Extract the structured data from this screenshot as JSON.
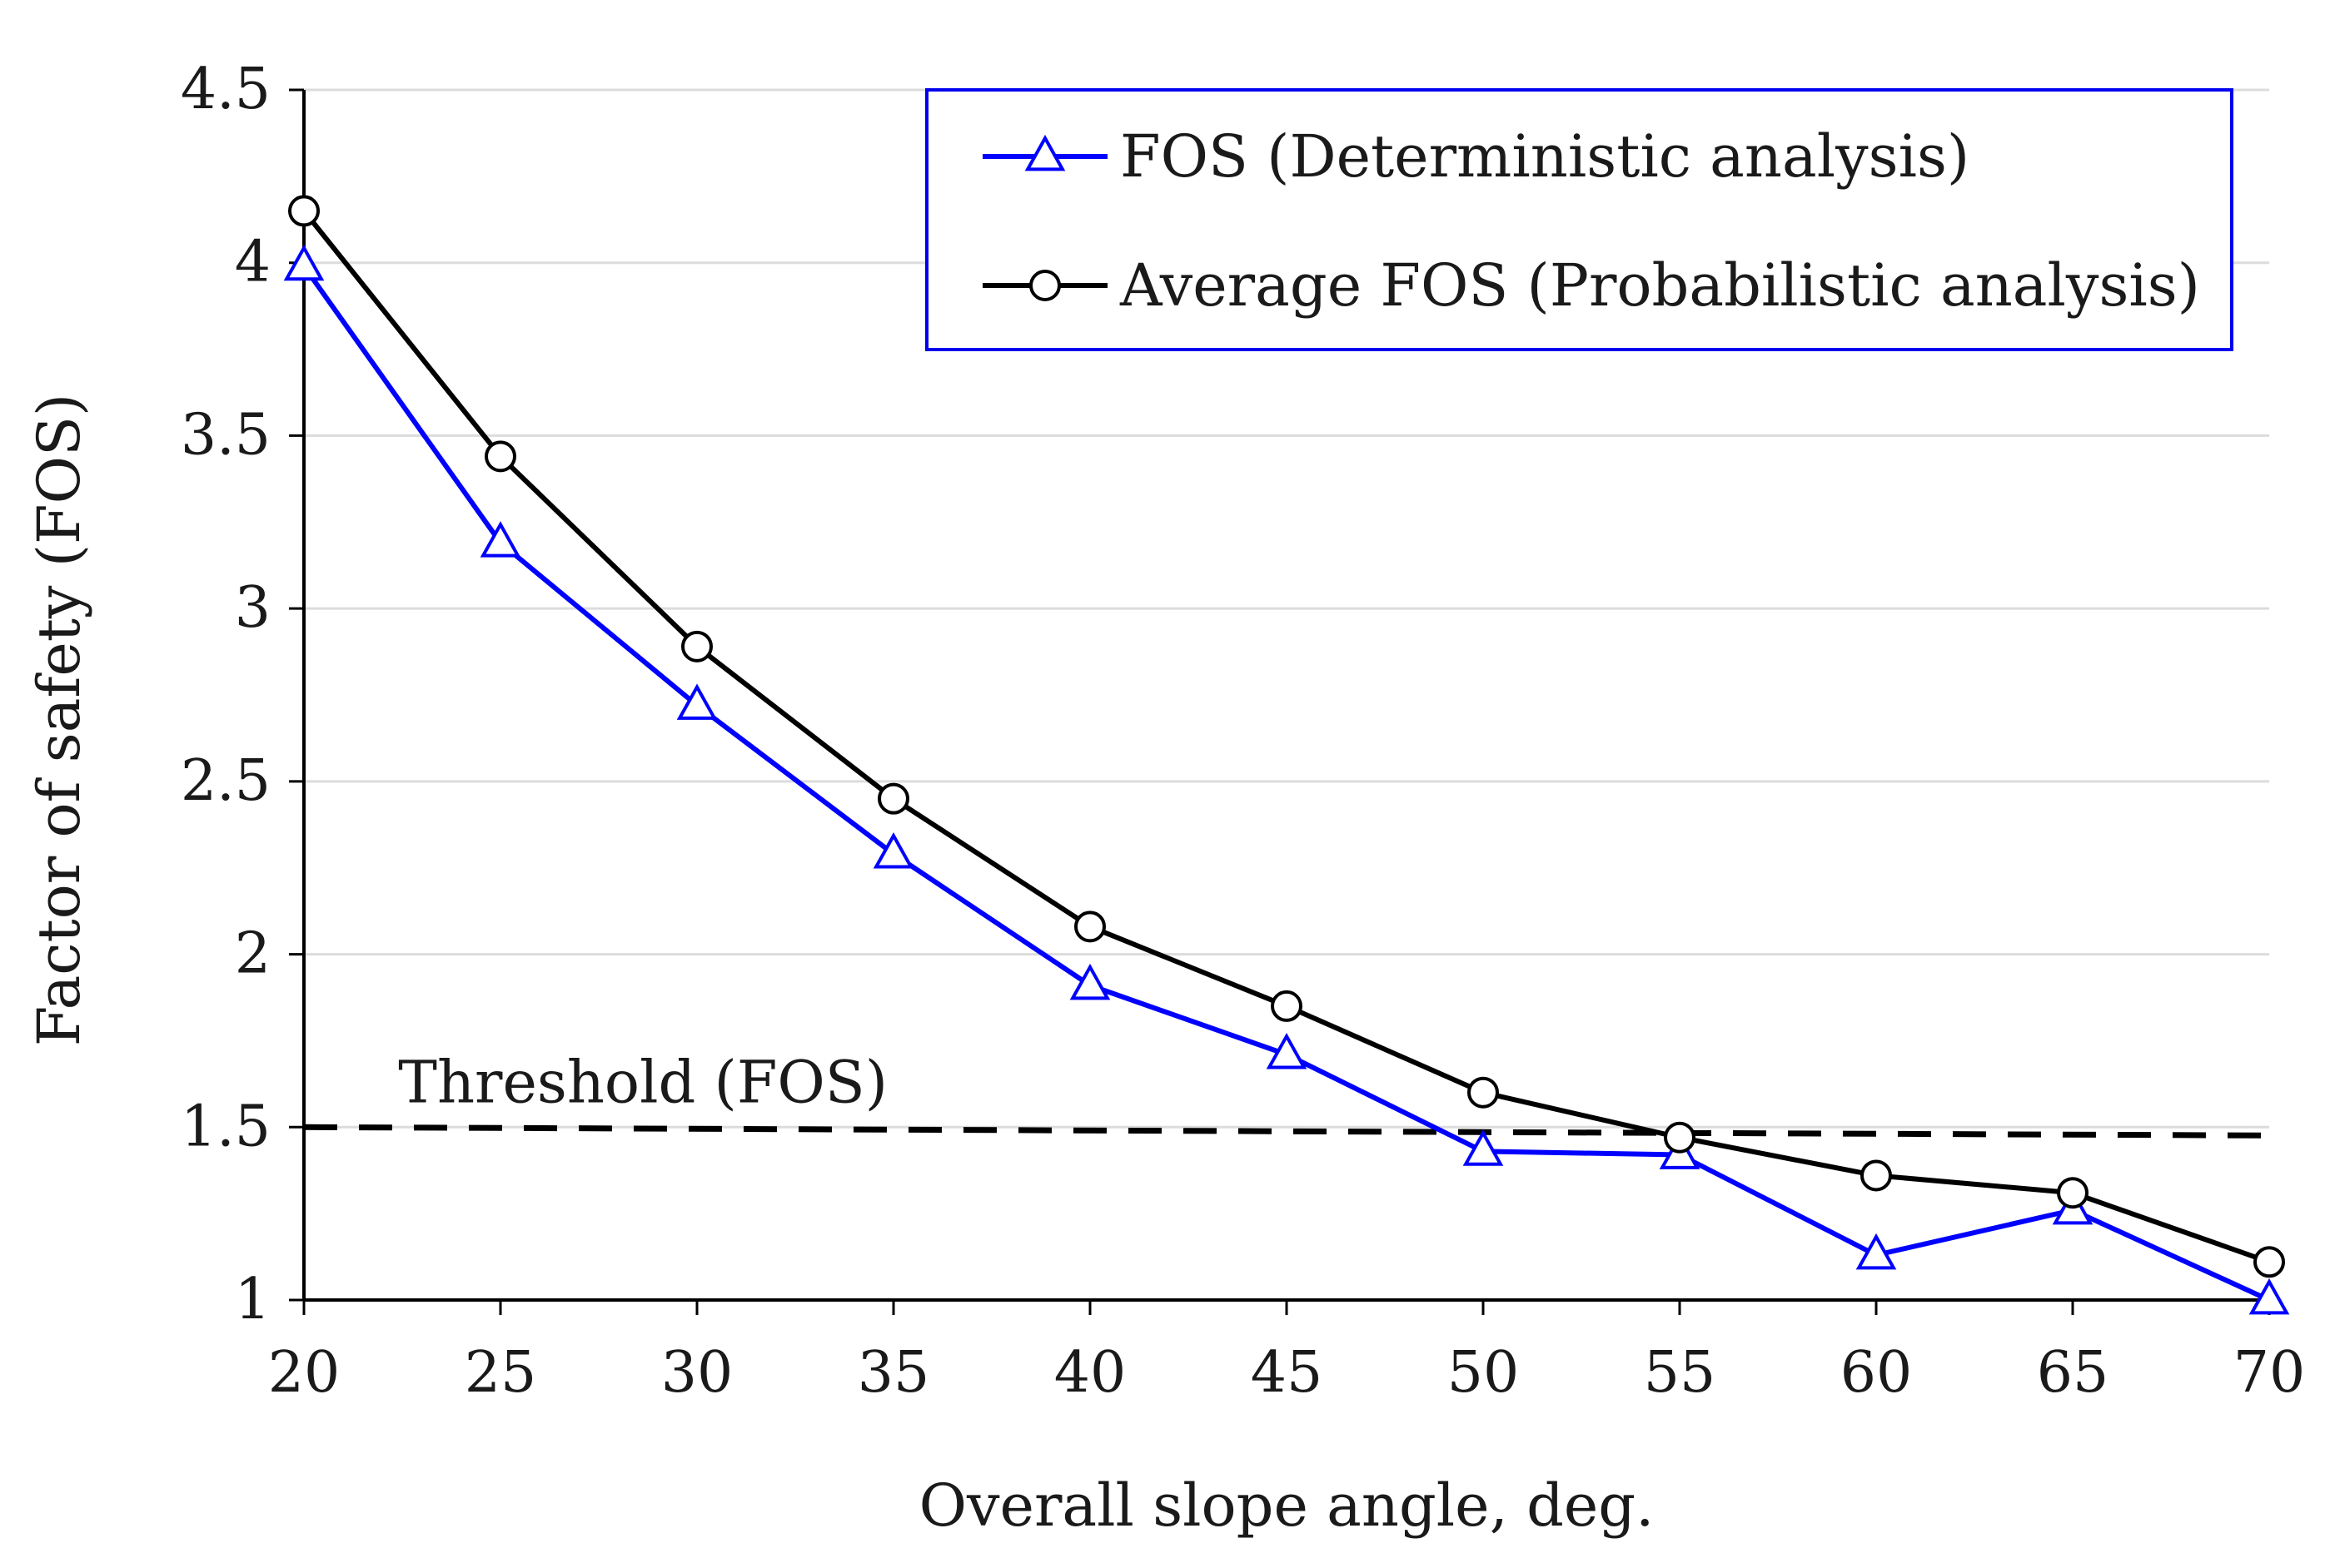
{
  "chart_data": {
    "type": "line",
    "xlabel": "Overall slope angle, deg.",
    "ylabel": "Factor of safety (FOS)",
    "xlim": [
      20,
      70
    ],
    "ylim": [
      1,
      4.5
    ],
    "x_ticks": [
      "20",
      "25",
      "30",
      "35",
      "40",
      "45",
      "50",
      "55",
      "60",
      "65",
      "70"
    ],
    "y_ticks": [
      "1",
      "1.5",
      "2",
      "2.5",
      "3",
      "3.5",
      "4",
      "4.5"
    ],
    "grid": true,
    "legend_position": "top-right",
    "x": [
      20,
      25,
      30,
      35,
      40,
      45,
      50,
      55,
      60,
      65,
      70
    ],
    "series": [
      {
        "name": "FOS (Deterministic analysis)",
        "color": "#0000ff",
        "marker": "triangle",
        "values": [
          3.99,
          3.19,
          2.72,
          2.29,
          1.91,
          1.71,
          1.43,
          1.42,
          1.13,
          1.26,
          1.0
        ]
      },
      {
        "name": "Average FOS (Probabilistic analysis)",
        "color": "#000000",
        "marker": "circle",
        "values": [
          4.15,
          3.44,
          2.89,
          2.45,
          2.08,
          1.85,
          1.6,
          1.47,
          1.36,
          1.31,
          1.11
        ]
      }
    ],
    "threshold": {
      "label": "Threshold (FOS)",
      "value": 1.5,
      "style": "dashed",
      "color": "#000000"
    }
  }
}
